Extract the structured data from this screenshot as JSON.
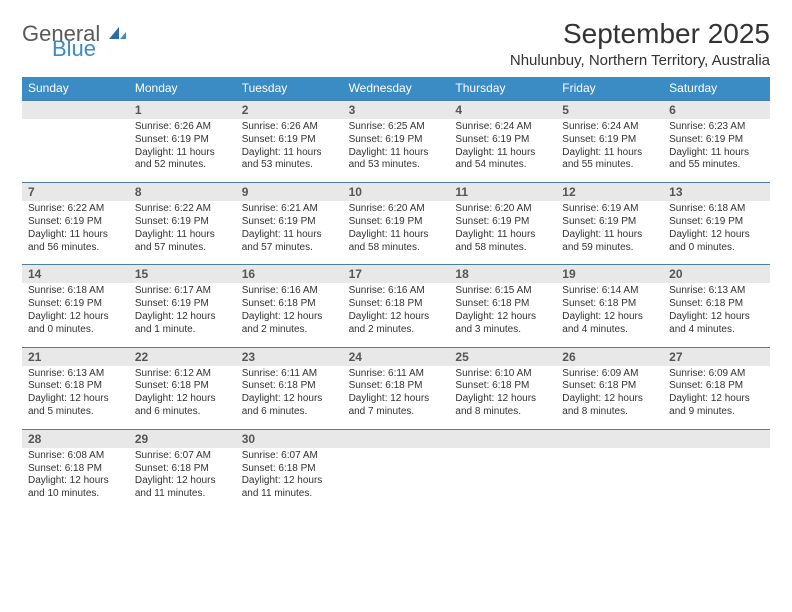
{
  "logo": {
    "main": "General",
    "sub": "Blue"
  },
  "title": "September 2025",
  "location": "Nhulunbuy, Northern Territory, Australia",
  "styling": {
    "page_bg": "#ffffff",
    "header_bg": "#3b8bc4",
    "header_fg": "#ffffff",
    "daynum_bg": "#e8e8e8",
    "daynum_border": "#4a7fa8",
    "text_color": "#333333",
    "logo_gray": "#5a5a5a",
    "logo_blue": "#3b8bc4",
    "title_fontsize": 28,
    "location_fontsize": 15,
    "weekday_fontsize": 12,
    "daynum_fontsize": 12,
    "cell_fontsize": 10,
    "columns": 7
  },
  "weekdays": [
    "Sunday",
    "Monday",
    "Tuesday",
    "Wednesday",
    "Thursday",
    "Friday",
    "Saturday"
  ],
  "weeks": [
    {
      "nums": [
        "",
        "1",
        "2",
        "3",
        "4",
        "5",
        "6"
      ],
      "cells": [
        null,
        {
          "sunrise": "Sunrise: 6:26 AM",
          "sunset": "Sunset: 6:19 PM",
          "dl1": "Daylight: 11 hours",
          "dl2": "and 52 minutes."
        },
        {
          "sunrise": "Sunrise: 6:26 AM",
          "sunset": "Sunset: 6:19 PM",
          "dl1": "Daylight: 11 hours",
          "dl2": "and 53 minutes."
        },
        {
          "sunrise": "Sunrise: 6:25 AM",
          "sunset": "Sunset: 6:19 PM",
          "dl1": "Daylight: 11 hours",
          "dl2": "and 53 minutes."
        },
        {
          "sunrise": "Sunrise: 6:24 AM",
          "sunset": "Sunset: 6:19 PM",
          "dl1": "Daylight: 11 hours",
          "dl2": "and 54 minutes."
        },
        {
          "sunrise": "Sunrise: 6:24 AM",
          "sunset": "Sunset: 6:19 PM",
          "dl1": "Daylight: 11 hours",
          "dl2": "and 55 minutes."
        },
        {
          "sunrise": "Sunrise: 6:23 AM",
          "sunset": "Sunset: 6:19 PM",
          "dl1": "Daylight: 11 hours",
          "dl2": "and 55 minutes."
        }
      ]
    },
    {
      "nums": [
        "7",
        "8",
        "9",
        "10",
        "11",
        "12",
        "13"
      ],
      "cells": [
        {
          "sunrise": "Sunrise: 6:22 AM",
          "sunset": "Sunset: 6:19 PM",
          "dl1": "Daylight: 11 hours",
          "dl2": "and 56 minutes."
        },
        {
          "sunrise": "Sunrise: 6:22 AM",
          "sunset": "Sunset: 6:19 PM",
          "dl1": "Daylight: 11 hours",
          "dl2": "and 57 minutes."
        },
        {
          "sunrise": "Sunrise: 6:21 AM",
          "sunset": "Sunset: 6:19 PM",
          "dl1": "Daylight: 11 hours",
          "dl2": "and 57 minutes."
        },
        {
          "sunrise": "Sunrise: 6:20 AM",
          "sunset": "Sunset: 6:19 PM",
          "dl1": "Daylight: 11 hours",
          "dl2": "and 58 minutes."
        },
        {
          "sunrise": "Sunrise: 6:20 AM",
          "sunset": "Sunset: 6:19 PM",
          "dl1": "Daylight: 11 hours",
          "dl2": "and 58 minutes."
        },
        {
          "sunrise": "Sunrise: 6:19 AM",
          "sunset": "Sunset: 6:19 PM",
          "dl1": "Daylight: 11 hours",
          "dl2": "and 59 minutes."
        },
        {
          "sunrise": "Sunrise: 6:18 AM",
          "sunset": "Sunset: 6:19 PM",
          "dl1": "Daylight: 12 hours",
          "dl2": "and 0 minutes."
        }
      ]
    },
    {
      "nums": [
        "14",
        "15",
        "16",
        "17",
        "18",
        "19",
        "20"
      ],
      "cells": [
        {
          "sunrise": "Sunrise: 6:18 AM",
          "sunset": "Sunset: 6:19 PM",
          "dl1": "Daylight: 12 hours",
          "dl2": "and 0 minutes."
        },
        {
          "sunrise": "Sunrise: 6:17 AM",
          "sunset": "Sunset: 6:19 PM",
          "dl1": "Daylight: 12 hours",
          "dl2": "and 1 minute."
        },
        {
          "sunrise": "Sunrise: 6:16 AM",
          "sunset": "Sunset: 6:18 PM",
          "dl1": "Daylight: 12 hours",
          "dl2": "and 2 minutes."
        },
        {
          "sunrise": "Sunrise: 6:16 AM",
          "sunset": "Sunset: 6:18 PM",
          "dl1": "Daylight: 12 hours",
          "dl2": "and 2 minutes."
        },
        {
          "sunrise": "Sunrise: 6:15 AM",
          "sunset": "Sunset: 6:18 PM",
          "dl1": "Daylight: 12 hours",
          "dl2": "and 3 minutes."
        },
        {
          "sunrise": "Sunrise: 6:14 AM",
          "sunset": "Sunset: 6:18 PM",
          "dl1": "Daylight: 12 hours",
          "dl2": "and 4 minutes."
        },
        {
          "sunrise": "Sunrise: 6:13 AM",
          "sunset": "Sunset: 6:18 PM",
          "dl1": "Daylight: 12 hours",
          "dl2": "and 4 minutes."
        }
      ]
    },
    {
      "nums": [
        "21",
        "22",
        "23",
        "24",
        "25",
        "26",
        "27"
      ],
      "cells": [
        {
          "sunrise": "Sunrise: 6:13 AM",
          "sunset": "Sunset: 6:18 PM",
          "dl1": "Daylight: 12 hours",
          "dl2": "and 5 minutes."
        },
        {
          "sunrise": "Sunrise: 6:12 AM",
          "sunset": "Sunset: 6:18 PM",
          "dl1": "Daylight: 12 hours",
          "dl2": "and 6 minutes."
        },
        {
          "sunrise": "Sunrise: 6:11 AM",
          "sunset": "Sunset: 6:18 PM",
          "dl1": "Daylight: 12 hours",
          "dl2": "and 6 minutes."
        },
        {
          "sunrise": "Sunrise: 6:11 AM",
          "sunset": "Sunset: 6:18 PM",
          "dl1": "Daylight: 12 hours",
          "dl2": "and 7 minutes."
        },
        {
          "sunrise": "Sunrise: 6:10 AM",
          "sunset": "Sunset: 6:18 PM",
          "dl1": "Daylight: 12 hours",
          "dl2": "and 8 minutes."
        },
        {
          "sunrise": "Sunrise: 6:09 AM",
          "sunset": "Sunset: 6:18 PM",
          "dl1": "Daylight: 12 hours",
          "dl2": "and 8 minutes."
        },
        {
          "sunrise": "Sunrise: 6:09 AM",
          "sunset": "Sunset: 6:18 PM",
          "dl1": "Daylight: 12 hours",
          "dl2": "and 9 minutes."
        }
      ]
    },
    {
      "nums": [
        "28",
        "29",
        "30",
        "",
        "",
        "",
        ""
      ],
      "cells": [
        {
          "sunrise": "Sunrise: 6:08 AM",
          "sunset": "Sunset: 6:18 PM",
          "dl1": "Daylight: 12 hours",
          "dl2": "and 10 minutes."
        },
        {
          "sunrise": "Sunrise: 6:07 AM",
          "sunset": "Sunset: 6:18 PM",
          "dl1": "Daylight: 12 hours",
          "dl2": "and 11 minutes."
        },
        {
          "sunrise": "Sunrise: 6:07 AM",
          "sunset": "Sunset: 6:18 PM",
          "dl1": "Daylight: 12 hours",
          "dl2": "and 11 minutes."
        },
        null,
        null,
        null,
        null
      ]
    }
  ]
}
